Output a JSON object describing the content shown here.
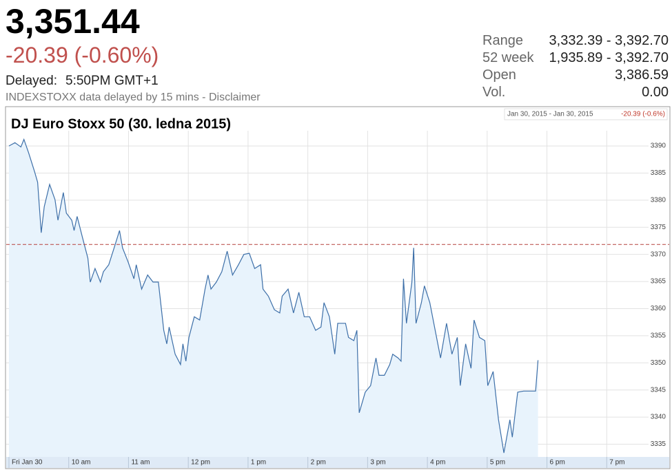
{
  "quote": {
    "price": "3,351.44",
    "change": "-20.39 (-0.60%)",
    "delayed_label": "Delayed:",
    "delayed_time": "5:50PM GMT+1",
    "disclaimer": "INDEXSTOXX data delayed by 15 mins - Disclaimer",
    "stats": [
      {
        "label": "Range",
        "value": "3,332.39 - 3,392.70"
      },
      {
        "label": "52 week",
        "value": "1,935.89 - 3,392.70"
      },
      {
        "label": "Open",
        "value": "3,386.59"
      },
      {
        "label": "Vol.",
        "value": "0.00"
      }
    ]
  },
  "chart_data": {
    "type": "line",
    "title": "DJ Euro Stoxx 50 (30. ledna 2015)",
    "range_dates": "Jan 30, 2015 - Jan 30, 2015",
    "range_change": "-20.39 (-0.6%)",
    "x": [
      9.0,
      9.1,
      9.2,
      9.25,
      9.33,
      9.43,
      9.48,
      9.54,
      9.59,
      9.68,
      9.77,
      9.82,
      9.91,
      9.96,
      10.05,
      10.09,
      10.14,
      10.23,
      10.32,
      10.36,
      10.44,
      10.53,
      10.58,
      10.67,
      10.76,
      10.85,
      10.9,
      10.99,
      11.09,
      11.13,
      11.22,
      11.32,
      11.41,
      11.5,
      11.59,
      11.64,
      11.68,
      11.78,
      11.87,
      11.91,
      11.96,
      12.01,
      12.1,
      12.19,
      12.28,
      12.33,
      12.38,
      12.47,
      12.56,
      12.65,
      12.74,
      12.84,
      12.93,
      13.02,
      13.11,
      13.21,
      13.25,
      13.34,
      13.44,
      13.53,
      13.57,
      13.67,
      13.76,
      13.85,
      13.94,
      14.03,
      14.13,
      14.22,
      14.27,
      14.36,
      14.45,
      14.5,
      14.63,
      14.68,
      14.77,
      14.82,
      14.86,
      14.96,
      15.05,
      15.14,
      15.19,
      15.28,
      15.37,
      15.42,
      15.51,
      15.56,
      15.6,
      15.65,
      15.74,
      15.77,
      15.81,
      15.9,
      15.95,
      16.04,
      16.13,
      16.22,
      16.32,
      16.41,
      16.5,
      16.55,
      16.64,
      16.73,
      16.78,
      16.87,
      16.96,
      17.01,
      17.1,
      17.19,
      17.28,
      17.38,
      17.42,
      17.51,
      17.61,
      17.81,
      17.85
    ],
    "series": [
      {
        "color": "#3d6fa8",
        "fill": "#e8f3fc",
        "values": [
          3390.0,
          3390.6,
          3389.8,
          3391.2,
          3388.7,
          3385.2,
          3383.3,
          3374.0,
          3378.8,
          3382.9,
          3380.1,
          3376.3,
          3381.4,
          3377.6,
          3376.3,
          3374.4,
          3377.0,
          3373.1,
          3369.3,
          3364.9,
          3367.4,
          3364.9,
          3366.8,
          3368.1,
          3371.2,
          3374.4,
          3371.2,
          3368.7,
          3365.5,
          3368.1,
          3363.6,
          3366.2,
          3364.9,
          3364.9,
          3356.0,
          3353.5,
          3356.6,
          3351.6,
          3349.7,
          3353.5,
          3350.3,
          3354.7,
          3358.5,
          3357.9,
          3363.6,
          3366.2,
          3363.6,
          3364.9,
          3366.8,
          3370.6,
          3366.2,
          3368.1,
          3370.0,
          3370.2,
          3367.4,
          3368.1,
          3363.6,
          3362.3,
          3359.8,
          3359.2,
          3362.3,
          3363.6,
          3359.2,
          3363.0,
          3358.5,
          3358.5,
          3356.0,
          3356.6,
          3361.1,
          3358.5,
          3351.6,
          3357.3,
          3357.3,
          3354.7,
          3354.1,
          3356.0,
          3340.8,
          3344.6,
          3345.8,
          3350.9,
          3347.7,
          3347.7,
          3349.7,
          3351.6,
          3350.9,
          3350.3,
          3365.5,
          3357.3,
          3364.9,
          3371.2,
          3357.3,
          3361.1,
          3364.2,
          3361.1,
          3356.0,
          3350.9,
          3357.3,
          3351.6,
          3354.7,
          3345.8,
          3353.5,
          3349.0,
          3357.9,
          3354.7,
          3354.1,
          3345.8,
          3348.4,
          3339.5,
          3333.4,
          3339.5,
          3336.3,
          3344.6,
          3344.8,
          3344.8,
          3350.5
        ]
      }
    ],
    "reference_line": {
      "value": 3371.83,
      "color": "#b5403c"
    },
    "xlim": [
      9,
      19.7
    ],
    "ylim": [
      3332.4,
      3392.8
    ],
    "xticks": [
      {
        "value": 9,
        "label": "Fri Jan 30"
      },
      {
        "value": 10,
        "label": "10 am"
      },
      {
        "value": 11,
        "label": "11 am"
      },
      {
        "value": 12,
        "label": "12 pm"
      },
      {
        "value": 13,
        "label": "1 pm"
      },
      {
        "value": 14,
        "label": "2 pm"
      },
      {
        "value": 15,
        "label": "3 pm"
      },
      {
        "value": 16,
        "label": "4 pm"
      },
      {
        "value": 17,
        "label": "5 pm"
      },
      {
        "value": 18,
        "label": "6 pm"
      },
      {
        "value": 19,
        "label": "7 pm"
      }
    ],
    "yticks": [
      3335,
      3340,
      3345,
      3350,
      3355,
      3360,
      3365,
      3370,
      3375,
      3380,
      3385,
      3390
    ],
    "grid": true
  }
}
